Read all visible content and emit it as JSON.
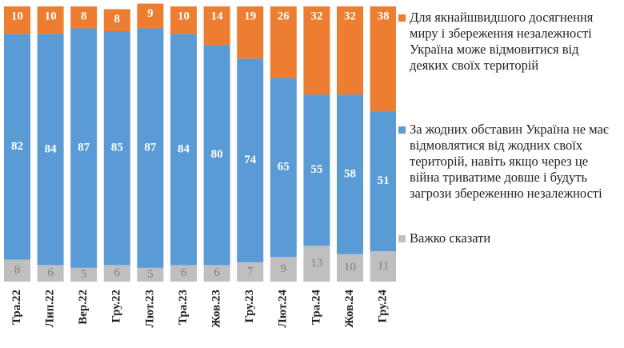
{
  "chart_data": {
    "type": "stacked-bar",
    "categories": [
      "Тра.22",
      "Лип.22",
      "Вер.22",
      "Гру.22",
      "Лют.23",
      "Тра.23",
      "Жов.23",
      "Гру.23",
      "Лют.24",
      "Тра.24",
      "Жов.24",
      "Гру.24"
    ],
    "ylim": [
      0,
      100
    ],
    "series": [
      {
        "name": "Для якнайшвидшого досягнення миру і збереження незалежності Україна може відмовитися від деяких своїх територій",
        "color": "#ed7d31",
        "values": [
          10,
          10,
          8,
          8,
          9,
          10,
          14,
          19,
          26,
          32,
          32,
          38
        ]
      },
      {
        "name": "За жодних обставин Україна не має відмовлятися від жодних своїх територій, навіть якщо через це війна триватиме довше і будуть загрози збереженню незалежності",
        "color": "#5b9bd5",
        "values": [
          82,
          84,
          87,
          85,
          87,
          84,
          80,
          74,
          65,
          55,
          58,
          51
        ]
      },
      {
        "name": "Важко сказати",
        "color": "#bfbfbf",
        "values": [
          8,
          6,
          5,
          6,
          5,
          6,
          6,
          7,
          9,
          13,
          10,
          11
        ]
      }
    ]
  }
}
